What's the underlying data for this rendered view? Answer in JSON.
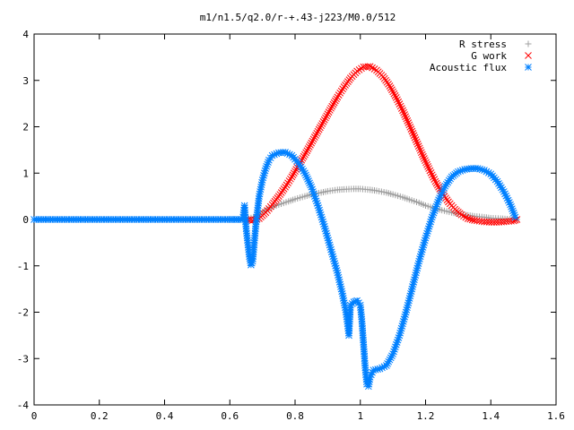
{
  "chart_data": {
    "type": "scatter",
    "title": "m1/n1.5/q2.0/r-+.43-j223/M0.0/512",
    "xlabel": "",
    "ylabel": "",
    "xlim": [
      0,
      1.6
    ],
    "ylim": [
      -4,
      4
    ],
    "x_ticks": [
      "0",
      "0.2",
      "0.4",
      "0.6",
      "0.8",
      "1",
      "1.2",
      "1.4",
      "1.6"
    ],
    "y_ticks": [
      "4",
      "3",
      "2",
      "1",
      "0",
      "-1",
      "-2",
      "-3",
      "-4"
    ],
    "legend_position": "top-right",
    "series": [
      {
        "name": "R stress",
        "marker": "plus",
        "color": "#a0a0a0",
        "points": [
          [
            0.65,
            0.0
          ],
          [
            0.68,
            0.07
          ],
          [
            0.7,
            0.16
          ],
          [
            0.72,
            0.24
          ],
          [
            0.75,
            0.32
          ],
          [
            0.78,
            0.39
          ],
          [
            0.8,
            0.44
          ],
          [
            0.83,
            0.5
          ],
          [
            0.85,
            0.54
          ],
          [
            0.88,
            0.58
          ],
          [
            0.9,
            0.61
          ],
          [
            0.93,
            0.64
          ],
          [
            0.95,
            0.65
          ],
          [
            0.98,
            0.66
          ],
          [
            1.0,
            0.66
          ],
          [
            1.03,
            0.64
          ],
          [
            1.05,
            0.62
          ],
          [
            1.08,
            0.58
          ],
          [
            1.1,
            0.54
          ],
          [
            1.13,
            0.48
          ],
          [
            1.15,
            0.43
          ],
          [
            1.18,
            0.36
          ],
          [
            1.2,
            0.3
          ],
          [
            1.23,
            0.24
          ],
          [
            1.25,
            0.2
          ],
          [
            1.28,
            0.15
          ],
          [
            1.3,
            0.12
          ],
          [
            1.33,
            0.09
          ],
          [
            1.35,
            0.07
          ],
          [
            1.38,
            0.05
          ],
          [
            1.4,
            0.03
          ],
          [
            1.43,
            0.02
          ],
          [
            1.45,
            0.01
          ],
          [
            1.48,
            0.0
          ]
        ]
      },
      {
        "name": "G work",
        "marker": "cross",
        "color": "#ff0000",
        "points": [
          [
            0.65,
            0.0
          ],
          [
            0.67,
            -0.02
          ],
          [
            0.69,
            0.02
          ],
          [
            0.71,
            0.15
          ],
          [
            0.73,
            0.32
          ],
          [
            0.75,
            0.5
          ],
          [
            0.77,
            0.7
          ],
          [
            0.79,
            0.92
          ],
          [
            0.81,
            1.16
          ],
          [
            0.83,
            1.4
          ],
          [
            0.85,
            1.65
          ],
          [
            0.87,
            1.9
          ],
          [
            0.89,
            2.15
          ],
          [
            0.91,
            2.4
          ],
          [
            0.93,
            2.64
          ],
          [
            0.95,
            2.86
          ],
          [
            0.97,
            3.05
          ],
          [
            0.99,
            3.2
          ],
          [
            1.01,
            3.29
          ],
          [
            1.03,
            3.3
          ],
          [
            1.05,
            3.22
          ],
          [
            1.07,
            3.08
          ],
          [
            1.09,
            2.88
          ],
          [
            1.11,
            2.63
          ],
          [
            1.13,
            2.35
          ],
          [
            1.15,
            2.04
          ],
          [
            1.17,
            1.72
          ],
          [
            1.19,
            1.4
          ],
          [
            1.21,
            1.1
          ],
          [
            1.23,
            0.82
          ],
          [
            1.25,
            0.58
          ],
          [
            1.27,
            0.38
          ],
          [
            1.29,
            0.22
          ],
          [
            1.31,
            0.1
          ],
          [
            1.33,
            0.02
          ],
          [
            1.35,
            -0.02
          ],
          [
            1.38,
            -0.05
          ],
          [
            1.41,
            -0.06
          ],
          [
            1.44,
            -0.05
          ],
          [
            1.47,
            -0.03
          ],
          [
            1.48,
            0.0
          ]
        ]
      },
      {
        "name": "Acoustic flux",
        "marker": "star",
        "color": "#0080ff",
        "points": [
          [
            0.0,
            0.0
          ],
          [
            0.05,
            0.0
          ],
          [
            0.1,
            0.0
          ],
          [
            0.15,
            0.0
          ],
          [
            0.2,
            0.0
          ],
          [
            0.25,
            0.0
          ],
          [
            0.3,
            0.0
          ],
          [
            0.35,
            0.0
          ],
          [
            0.4,
            0.0
          ],
          [
            0.45,
            0.0
          ],
          [
            0.5,
            0.0
          ],
          [
            0.55,
            0.0
          ],
          [
            0.6,
            0.0
          ],
          [
            0.64,
            0.0
          ],
          [
            0.645,
            0.3
          ],
          [
            0.65,
            -0.2
          ],
          [
            0.655,
            -0.5
          ],
          [
            0.66,
            -0.8
          ],
          [
            0.665,
            -0.98
          ],
          [
            0.67,
            -0.9
          ],
          [
            0.675,
            -0.5
          ],
          [
            0.68,
            -0.1
          ],
          [
            0.685,
            0.2
          ],
          [
            0.69,
            0.5
          ],
          [
            0.7,
            0.85
          ],
          [
            0.71,
            1.1
          ],
          [
            0.72,
            1.28
          ],
          [
            0.73,
            1.38
          ],
          [
            0.75,
            1.44
          ],
          [
            0.77,
            1.45
          ],
          [
            0.79,
            1.38
          ],
          [
            0.81,
            1.22
          ],
          [
            0.83,
            1.0
          ],
          [
            0.85,
            0.7
          ],
          [
            0.87,
            0.3
          ],
          [
            0.89,
            -0.15
          ],
          [
            0.91,
            -0.65
          ],
          [
            0.93,
            -1.15
          ],
          [
            0.945,
            -1.6
          ],
          [
            0.955,
            -1.95
          ],
          [
            0.96,
            -2.2
          ],
          [
            0.965,
            -2.5
          ],
          [
            0.97,
            -1.85
          ],
          [
            0.98,
            -1.78
          ],
          [
            0.99,
            -1.75
          ],
          [
            1.0,
            -1.85
          ],
          [
            1.005,
            -2.2
          ],
          [
            1.01,
            -2.7
          ],
          [
            1.015,
            -3.2
          ],
          [
            1.02,
            -3.55
          ],
          [
            1.025,
            -3.6
          ],
          [
            1.03,
            -3.4
          ],
          [
            1.04,
            -3.25
          ],
          [
            1.06,
            -3.22
          ],
          [
            1.08,
            -3.15
          ],
          [
            1.1,
            -2.9
          ],
          [
            1.12,
            -2.5
          ],
          [
            1.14,
            -2.0
          ],
          [
            1.16,
            -1.45
          ],
          [
            1.18,
            -0.9
          ],
          [
            1.2,
            -0.4
          ],
          [
            1.22,
            0.05
          ],
          [
            1.24,
            0.42
          ],
          [
            1.26,
            0.72
          ],
          [
            1.28,
            0.92
          ],
          [
            1.3,
            1.03
          ],
          [
            1.32,
            1.08
          ],
          [
            1.34,
            1.1
          ],
          [
            1.36,
            1.1
          ],
          [
            1.38,
            1.06
          ],
          [
            1.4,
            0.98
          ],
          [
            1.42,
            0.82
          ],
          [
            1.44,
            0.6
          ],
          [
            1.46,
            0.32
          ],
          [
            1.475,
            0.05
          ]
        ]
      }
    ]
  }
}
